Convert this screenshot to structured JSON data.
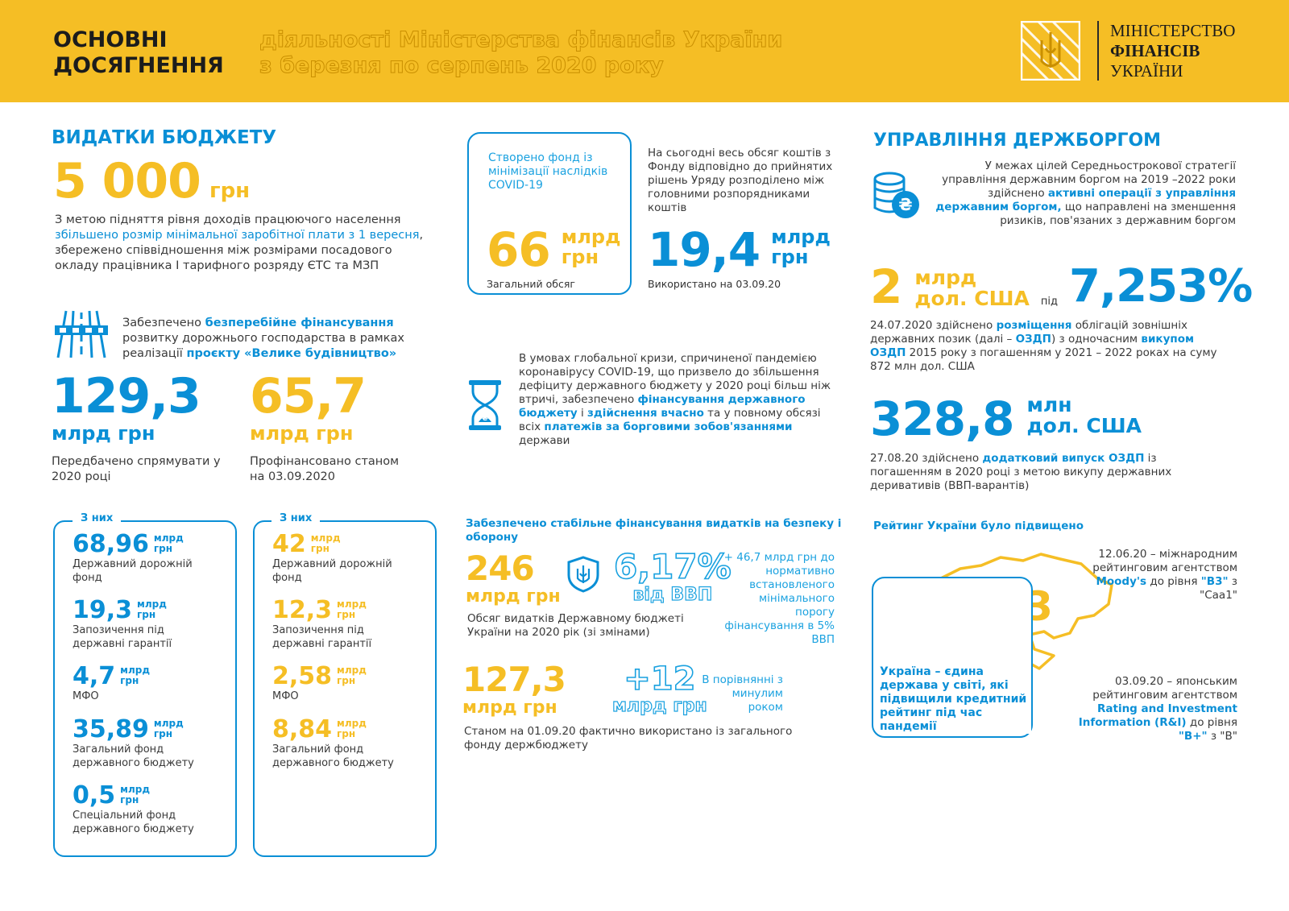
{
  "header": {
    "title_line1": "ОСНОВНІ",
    "title_line2": "ДОСЯГНЕННЯ",
    "subtitle_line1": "діяльності Міністерства фінансів України",
    "subtitle_line2": "з березня по серпень 2020 року",
    "logo_line1": "МІНІСТЕРСТВО",
    "logo_line2": "ФІНАНСІВ",
    "logo_line3": "УКРАЇНИ",
    "colors": {
      "header_bg": "#f5be25",
      "accent_blue": "#0a8fd6",
      "accent_yellow": "#f5be25"
    }
  },
  "budget": {
    "heading": "ВИДАТКИ БЮДЖЕТУ",
    "wage_value": "5 000",
    "wage_unit": "грн",
    "wage_text_1": "З метою підняття рівня доходів працюючого населення ",
    "wage_text_hl": "збільшено розмір мінімальної заробітної плати з 1 вересня",
    "wage_text_2": ", збережено співвідношення між розмірами посадового окладу працівника І тарифного розряду ЄТС та МЗП",
    "road_text_1": "Забезпечено ",
    "road_text_hl1": "безперебійне фінансування",
    "road_text_2": " розвитку дорожнього господарства в рамках реалізації ",
    "road_text_hl2": "проєкту «Велике будівництво»",
    "road_icon": "road-icon",
    "planned_value": "129,3",
    "planned_unit": "млрд грн",
    "planned_caption": "Передбачено спрямувати у 2020 році",
    "funded_value": "65,7",
    "funded_unit": "млрд грн",
    "funded_caption": "Профінансовано станом на 03.09.2020",
    "box_tab": "З них",
    "left_box": [
      {
        "value": "68,96",
        "unit1": "млрд",
        "unit2": "грн",
        "label": "Державний дорожній фонд"
      },
      {
        "value": "19,3",
        "unit1": "млрд",
        "unit2": "грн",
        "label": "Запозичення під державні гарантії"
      },
      {
        "value": "4,7",
        "unit1": "млрд",
        "unit2": "грн",
        "label": "МФО"
      },
      {
        "value": "35,89",
        "unit1": "млрд",
        "unit2": "грн",
        "label": "Загальний фонд державного бюджету"
      },
      {
        "value": "0,5",
        "unit1": "млрд",
        "unit2": "грн",
        "label": "Спеціальний фонд державного бюджету"
      }
    ],
    "right_box": [
      {
        "value": "42",
        "unit1": "млрд",
        "unit2": "грн",
        "label": "Державний дорожній фонд"
      },
      {
        "value": "12,3",
        "unit1": "млрд",
        "unit2": "грн",
        "label": "Запозичення під державні гарантії"
      },
      {
        "value": "2,58",
        "unit1": "млрд",
        "unit2": "грн",
        "label": "МФО"
      },
      {
        "value": "8,84",
        "unit1": "млрд",
        "unit2": "грн",
        "label": "Загальний фонд державного бюджету"
      }
    ]
  },
  "covid": {
    "fund_box_text": "Створено фонд із мінімізації наслідків COVID-19",
    "fund_value": "66",
    "fund_unit1": "млрд",
    "fund_unit2": "грн",
    "fund_caption": "Загальний обсяг",
    "distributed_text": "На сьогодні весь обсяг коштів з Фонду відповідно до прийнятих рішень Уряду розподілено між головними розпорядниками коштів",
    "used_value": "19,4",
    "used_unit1": "млрд",
    "used_unit2": "грн",
    "used_caption": "Використано на 03.09.20",
    "crisis_text_1": "В умовах глобальної кризи, спричиненої пандемією коронавірусу COVID-19, що призвело до збільшення дефіциту державного бюджету у 2020 році більш ніж втричі, забезпечено ",
    "crisis_hl1": "фінансування державного бюджету",
    "crisis_text_2": " і ",
    "crisis_hl2": "здійснення вчасно",
    "crisis_text_3": " та у повному обсязі всіх ",
    "crisis_hl3": "платежів за борговими зобов'язаннями",
    "crisis_text_4": " держави",
    "crisis_icon": "hourglass-icon"
  },
  "defense": {
    "heading": "Забезпечено стабільне фінансування видатків на безпеку і оборону",
    "total_value": "246",
    "total_unit": "млрд грн",
    "shield_icon": "trident-shield-icon",
    "gdp_value": "6,17%",
    "gdp_unit": "від ВВП",
    "extra_text": "+ 46,7 млрд грн до нормативно встановленого мінімального порогу фінансування в 5% ВВП",
    "total_caption": "Обсяг видатків Державному бюджеті України на 2020 рік (зі змінами)",
    "used_value": "127,3",
    "used_unit": "млрд грн",
    "diff_value": "+12",
    "diff_unit": "млрд грн",
    "compare_text": "В порівнянні з минулим роком",
    "used_caption": "Станом на 01.09.20 фактично використано із загального фонду держбюджету"
  },
  "debt": {
    "heading": "УПРАВЛІННЯ ДЕРЖБОРГОМ",
    "intro_1": "У межах цілей Середньострокової стратегії управління державним боргом на 2019 –2022 роки здійснено ",
    "intro_hl": "активні операції з управління державним боргом,",
    "intro_2": " що направлені на зменшення ризиків, пов'язаних з державним боргом",
    "coins_icon": "coins-hryvnia-icon",
    "placement_value": "2",
    "placement_unit1": "млрд",
    "placement_unit2": "дол. США",
    "under": "під",
    "rate_value": "7,253%",
    "placement_text_1": "24.07.2020 здійснено ",
    "placement_hl1": "розміщення",
    "placement_text_2": " облігацій зовнішніх державних позик (далі – ",
    "placement_hl2": "ОЗДП",
    "placement_text_3": ") з одночасним ",
    "placement_hl3": "викупом ОЗДП",
    "placement_text_4": " 2015 року з погашенням у 2021 – 2022 роках на суму 872 млн дол. США",
    "addl_value": "328,8",
    "addl_unit1": "млн",
    "addl_unit2": "дол. США",
    "addl_text_1": "27.08.20 здійснено ",
    "addl_hl": "додатковий випуск ОЗДП",
    "addl_text_2": " із погашенням в 2020 році з метою викупу державних деривативів (ВВП-варантів)"
  },
  "rating": {
    "heading": "Рейтинг України було підвищено",
    "map_value": "B3",
    "map_icon": "ukraine-map-icon",
    "moodys_text_1": "12.06.20 – міжнародним рейтинговим агентством ",
    "moodys_hl": "Moody's",
    "moodys_text_2": " до рівня ",
    "moodys_hl2": "\"B3\"",
    "moodys_text_3": " з \"Caa1\"",
    "box_text": "Україна – єдина держава у світі, які підвищили кредитний рейтинг під час пандемії",
    "ri_text_1": "03.09.20 – японським рейтинговим агентством ",
    "ri_hl": "Rating and Investment Information (R&I)",
    "ri_text_2": " до рівня ",
    "ri_hl2": "\"B+\"",
    "ri_text_3": " з \"B\""
  }
}
